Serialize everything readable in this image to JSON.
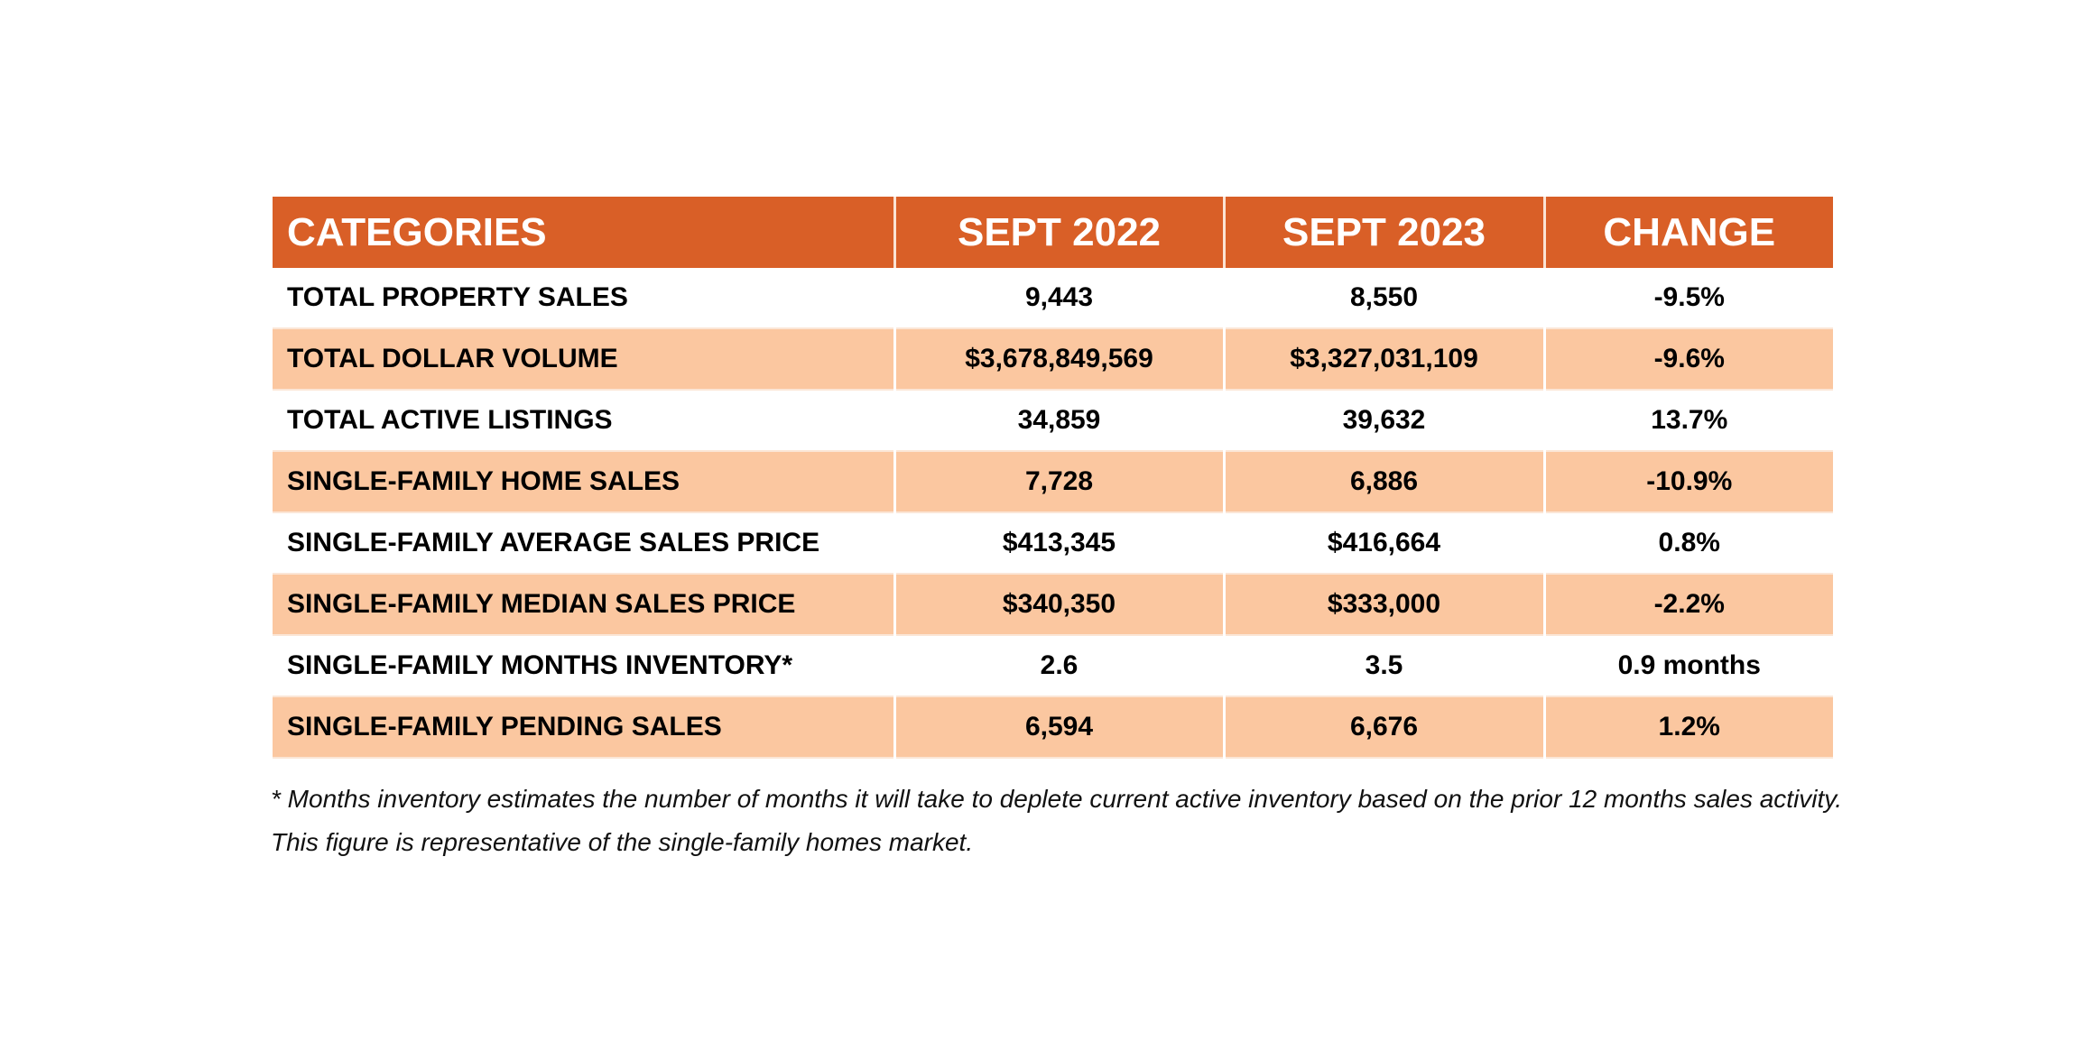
{
  "table": {
    "headers": [
      "CATEGORIES",
      "SEPT 2022",
      "SEPT 2023",
      "CHANGE"
    ],
    "rows": [
      [
        "TOTAL PROPERTY SALES",
        "9,443",
        "8,550",
        "-9.5%"
      ],
      [
        "TOTAL DOLLAR VOLUME",
        "$3,678,849,569",
        "$3,327,031,109",
        "-9.6%"
      ],
      [
        "TOTAL ACTIVE LISTINGS",
        "34,859",
        "39,632",
        "13.7%"
      ],
      [
        "SINGLE-FAMILY HOME SALES",
        "7,728",
        "6,886",
        "-10.9%"
      ],
      [
        "SINGLE-FAMILY AVERAGE SALES PRICE",
        "$413,345",
        "$416,664",
        "0.8%"
      ],
      [
        "SINGLE-FAMILY MEDIAN SALES PRICE",
        "$340,350",
        "$333,000",
        "-2.2%"
      ],
      [
        "SINGLE-FAMILY MONTHS INVENTORY*",
        "2.6",
        "3.5",
        "0.9 months"
      ],
      [
        "SINGLE-FAMILY PENDING SALES",
        "6,594",
        "6,676",
        "1.2%"
      ]
    ]
  },
  "footnote": "* Months inventory estimates the number of months it will take to deplete current active inventory based on the prior 12 months sales activity. This figure is representative of the single-family homes market.",
  "colors": {
    "header": "#d95f27",
    "alt_row": "#fbc7a0"
  }
}
